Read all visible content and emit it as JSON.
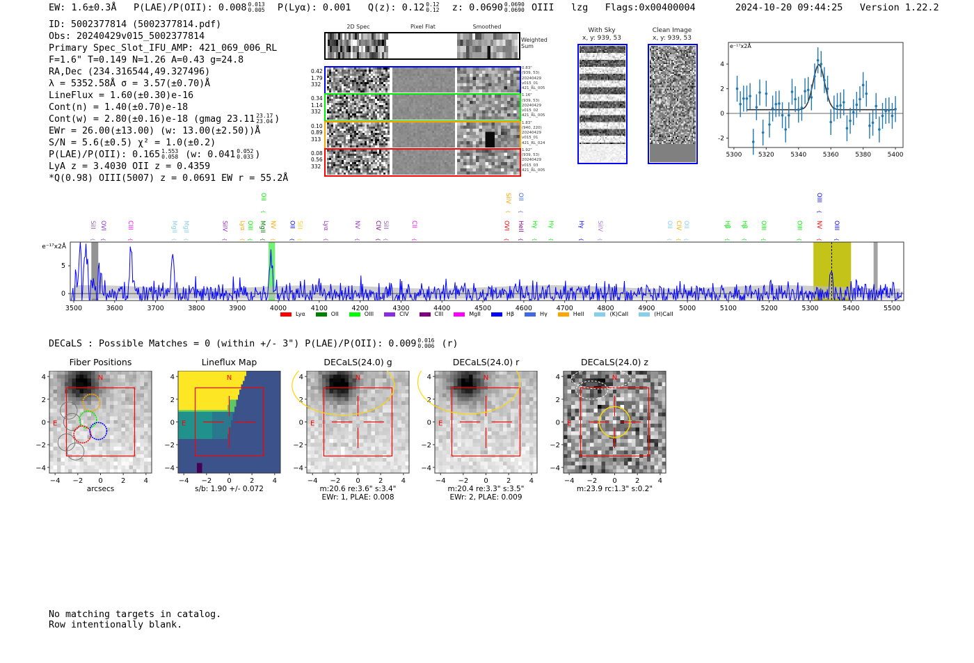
{
  "header": {
    "ew": "EW: 1.6±0.3Å",
    "plae_label": "P(LAE)/P(OII): 0.008",
    "plae_hi": "0.013",
    "plae_lo": "0.005",
    "plya": "P(Lyα): 0.001",
    "qz_label": "Q(z): 0.12",
    "qz_hi": "0.12",
    "qz_lo": "0.12",
    "z_label": "z: 0.0690",
    "z_hi": "0.0690",
    "z_lo": "0.0690",
    "line": "OIII",
    "tag": "lzg",
    "flags": "Flags:0x00400004",
    "datetime": "2024-10-20 09:44:25",
    "version": "Version 1.22.2"
  },
  "info": {
    "id": "ID: 5002377814 (5002377814.pdf)",
    "obs": "Obs: 20240429v015_5002377814",
    "primary": "Primary Spec_Slot_IFU_AMP: 421_069_006_RL",
    "params": "F=1.6\"  T=0.149  N=1.26  A=0.43  g=24.8",
    "radec": "RA,Dec (234.316544,49.327496)",
    "lambda": "λ = 5352.58Å  σ = 3.57(±0.70)Å",
    "lineflux": "LineFlux = 1.60(±0.30)e-16",
    "contn": "Cont(n) = 1.40(±0.70)e-18",
    "contw": "Cont(w) = 2.80(±0.16)e-18 (gmag 23.11",
    "contw_hi": "23.17",
    "contw_lo": "23.04",
    "contw_end": ")",
    "ewr": "EWr = 26.00(±13.00) (w: 13.00(±2.50))Å",
    "sn": "S/N = 5.6(±0.5)  χ² = 1.0(±0.2)",
    "plae": "P(LAE)/P(OII): 0.165",
    "plae_hi": "1.553",
    "plae_lo": "0.058",
    "plae_w": "(w: 0.041",
    "plae_w_hi": "0.052",
    "plae_w_lo": "0.033",
    "plae_end": ")",
    "lyaz": "LyA z = 3.4030   OII z = 0.4359",
    "q": "*Q(0.98) OIII(5007) z = 0.0691  EW r = 55.2Å"
  },
  "spec2d": {
    "col_headers": [
      "2D Spec",
      "Pixel Flat",
      "Smoothed"
    ],
    "weighted_label": "Weighted Sum",
    "rows": [
      {
        "color": "#0000ff",
        "left": [
          "0.42",
          "1.79",
          "332"
        ],
        "right": [
          "0.83\"",
          "(939, 53)",
          "20240429",
          "v015_01",
          "421_RL_005"
        ]
      },
      {
        "color": "#00ee00",
        "left": [
          "0.34",
          "1.14",
          "332"
        ],
        "right": [
          "1.16\"",
          "(939, 53)",
          "20240429",
          "v015_02",
          "421_RL_005"
        ]
      },
      {
        "color": "#ffa500",
        "left": [
          "0.10",
          "0.89",
          "313"
        ],
        "right": [
          "1.83\"",
          "(940, 220)",
          "20240429",
          "v015_01",
          "421_RL_024"
        ]
      },
      {
        "color": "#ff0000",
        "left": [
          "0.08",
          "0.56",
          "332"
        ],
        "right": [
          "1.92\"",
          "(939, 53)",
          "20240429",
          "v015_03",
          "421_RL_005"
        ]
      }
    ]
  },
  "sky": {
    "with_sky": "With Sky",
    "with_sky_xy": "x, y: 939, 53",
    "clean": "Clean Image",
    "clean_xy": "x, y: 939, 53"
  },
  "chart_data": [
    {
      "type": "scatter",
      "title": "",
      "ylabel": "e⁻¹⁷x2Å",
      "xlim": [
        5296.6,
        5404.7
      ],
      "ylim": [
        -2.76,
        5.75
      ],
      "xticks": [
        5300,
        5320,
        5340,
        5360,
        5380,
        5400
      ],
      "yticks": [
        -2,
        0,
        2,
        4
      ],
      "x": [
        5302,
        5304,
        5306,
        5308,
        5310,
        5312,
        5314,
        5316,
        5318,
        5320,
        5322,
        5324,
        5326,
        5328,
        5330,
        5332,
        5334,
        5336,
        5338,
        5340,
        5342,
        5344,
        5346,
        5348,
        5350,
        5352,
        5354,
        5356,
        5358,
        5360,
        5362,
        5364,
        5366,
        5368,
        5370,
        5372,
        5374,
        5376,
        5378,
        5380,
        5382,
        5384,
        5386,
        5388,
        5390,
        5392,
        5394,
        5396,
        5398,
        5400
      ],
      "y": [
        2.0,
        0.75,
        1.2,
        1.2,
        1.4,
        -2.3,
        0.5,
        1.7,
        -1.55,
        1.6,
        -0.9,
        0.4,
        0.75,
        0.8,
        -0.15,
        -1.3,
        -0.15,
        1.75,
        1.15,
        0.3,
        0.45,
        1.8,
        1.9,
        1.3,
        3.0,
        4.3,
        4.0,
        2.7,
        2.0,
        -0.7,
        0.4,
        0.6,
        0.65,
        0.9,
        -1.2,
        -0.6,
        0.1,
        0.7,
        1.15,
        2.3,
        1.6,
        -1.0,
        -0.75,
        0.6,
        -1.3,
        -0.2,
        0.2,
        0.25,
        -0.2,
        0.35
      ],
      "yerr": 1.05,
      "fit": {
        "continuum": 0.3,
        "amplitude": 3.65,
        "center": 5352.58,
        "sigma": 3.57
      }
    },
    {
      "type": "line",
      "ylabel": "e⁻¹⁷x2Å",
      "xlim": [
        3491.5,
        5528.7
      ],
      "ylim": [
        -1.25,
        9.25
      ],
      "xticks": [
        3500,
        3600,
        3700,
        3800,
        3900,
        4000,
        4100,
        4200,
        4300,
        4400,
        4500,
        4600,
        4700,
        4800,
        4900,
        5000,
        5100,
        5200,
        5300,
        5400,
        5500
      ],
      "yticks": [
        0,
        5
      ],
      "features": [
        {
          "wave": 3640,
          "flux": 8.2
        },
        {
          "wave": 3742,
          "flux": 7.0
        },
        {
          "wave": 3982,
          "flux": 6.5
        },
        {
          "wave": 5352,
          "flux": 3.2
        },
        {
          "wave": 3530,
          "flux": 9
        },
        {
          "wave": 3515,
          "flux": 8
        }
      ],
      "bands": [
        {
          "from": 3543,
          "to": 3560,
          "color": "#888888"
        },
        {
          "from": 3976,
          "to": 3992,
          "color": "#66ee66"
        },
        {
          "from": 5308,
          "to": 5400,
          "color": "#bcbd00"
        },
        {
          "from": 5455,
          "to": 5465,
          "color": "#999999"
        }
      ],
      "marker_line": 5352.6,
      "line_labels": [
        {
          "name": "SiII",
          "wave": 3537,
          "row": 1,
          "color": "#9467bd"
        },
        {
          "name": "OVI",
          "wave": 3563,
          "row": 1,
          "color": "#8a2be2"
        },
        {
          "name": "CIII",
          "wave": 3629,
          "row": 1,
          "color": "#ff00ff"
        },
        {
          "name": "MgII",
          "wave": 3736,
          "row": 1,
          "color": "#87ceeb"
        },
        {
          "name": "MgII",
          "wave": 3765,
          "row": 1,
          "color": "#87ceeb"
        },
        {
          "name": "SiIV",
          "wave": 3860,
          "row": 1,
          "color": "#9932cc"
        },
        {
          "name": "Lyα",
          "wave": 3903,
          "row": 1,
          "color": "#ffa500"
        },
        {
          "name": "OIII",
          "wave": 3920,
          "row": 1,
          "color": "#00ee00"
        },
        {
          "name": "MgII",
          "wave": 3952,
          "row": 1,
          "color": "#008000"
        },
        {
          "name": "NV",
          "wave": 3978,
          "row": 1,
          "color": "#ffa500"
        },
        {
          "name": "OII",
          "wave": 3954,
          "row": 0,
          "color": "#00ee00"
        },
        {
          "name": "OII",
          "wave": 4025,
          "row": 1,
          "color": "#0000ff"
        },
        {
          "name": "SiII",
          "wave": 4042,
          "row": 1,
          "color": "#ffcc33"
        },
        {
          "name": "Lyα",
          "wave": 4107,
          "row": 1,
          "color": "#9932cc"
        },
        {
          "name": "NV",
          "wave": 4184,
          "row": 1,
          "color": "#9932cc"
        },
        {
          "name": "CIV",
          "wave": 4235,
          "row": 1,
          "color": "#800080"
        },
        {
          "name": "SiII",
          "wave": 4252,
          "row": 1,
          "color": "#9467bd"
        },
        {
          "name": "CII",
          "wave": 4323,
          "row": 1,
          "color": "#ff00ff"
        },
        {
          "name": "SiIV",
          "wave": 4553,
          "row": 0,
          "color": "#ffa500"
        },
        {
          "name": "OII",
          "wave": 4583,
          "row": 0,
          "color": "#4169e1"
        },
        {
          "name": "OVI",
          "wave": 4548,
          "row": 1,
          "color": "#ff0000"
        },
        {
          "name": "HeII",
          "wave": 4583,
          "row": 1,
          "color": "#800080"
        },
        {
          "name": "Hγ",
          "wave": 4617,
          "row": 1,
          "color": "#00ee00"
        },
        {
          "name": "Hγ",
          "wave": 4657,
          "row": 1,
          "color": "#00ee00"
        },
        {
          "name": "Hγ",
          "wave": 4731,
          "row": 1,
          "color": "#0000ff"
        },
        {
          "name": "SiIV",
          "wave": 4777,
          "row": 1,
          "color": "#b07de0"
        },
        {
          "name": "OII",
          "wave": 4947,
          "row": 1,
          "color": "#87ceeb"
        },
        {
          "name": "CIV",
          "wave": 4969,
          "row": 1,
          "color": "#ffa500"
        },
        {
          "name": "OII",
          "wave": 4983,
          "row": 1,
          "color": "#87ceeb"
        },
        {
          "name": "Hβ",
          "wave": 5088,
          "row": 1,
          "color": "#00ee00"
        },
        {
          "name": "Hβ",
          "wave": 5130,
          "row": 1,
          "color": "#00ee00"
        },
        {
          "name": "OIII",
          "wave": 5177,
          "row": 1,
          "color": "#00ee00"
        },
        {
          "name": "OIII",
          "wave": 5264,
          "row": 1,
          "color": "#00ee00"
        },
        {
          "name": "NV",
          "wave": 5313,
          "row": 1,
          "color": "#ff0000"
        },
        {
          "name": "OIII",
          "wave": 5313,
          "row": 0,
          "color": "#0000ff"
        },
        {
          "name": "OIII",
          "wave": 5355,
          "row": 1,
          "color": "#0000ff"
        }
      ],
      "legend": [
        {
          "label": "Lyα",
          "color": "#ff0000"
        },
        {
          "label": "OII",
          "color": "#008000"
        },
        {
          "label": "OIII",
          "color": "#00ff00"
        },
        {
          "label": "CIV",
          "color": "#8a2be2"
        },
        {
          "label": "CIII",
          "color": "#800080"
        },
        {
          "label": "MgII",
          "color": "#ff00ff"
        },
        {
          "label": "Hβ",
          "color": "#0000ff"
        },
        {
          "label": "Hγ",
          "color": "#4169e1"
        },
        {
          "label": "HeII",
          "color": "#ffa500"
        },
        {
          "label": "(K)CaII",
          "color": "#87ceeb"
        },
        {
          "label": "(H)CaII",
          "color": "#87ceeb"
        }
      ]
    }
  ],
  "decals": {
    "line": "DECaLS : Possible Matches = 0 (within +/- 3\")  P(LAE)/P(OII): 0.009",
    "hi": "0.016",
    "lo": "0.006",
    "end": "(r)"
  },
  "cutouts": [
    {
      "title": "Fiber Positions",
      "cap1": "arcsecs",
      "cap2": "",
      "kind": "fiber"
    },
    {
      "title": "Lineflux Map",
      "cap1": "s/b: 1.90 +/- 0.072",
      "cap2": "",
      "kind": "lineflux"
    },
    {
      "title": "DECaLS(24.0) g",
      "cap1": "m:20.6  re:3.6\"  s:3.4\"",
      "cap2": "EWr: 1, PLAE: 0.008",
      "kind": "g"
    },
    {
      "title": "DECaLS(24.0) r",
      "cap1": "m:20.4  re:3.3\"  s:3.5\"",
      "cap2": "EWr: 2, PLAE: 0.009",
      "kind": "r"
    },
    {
      "title": "DECaLS(24.0) z",
      "cap1": "m:23.9  rc:1.3\"  s:0.2\"",
      "cap2": "",
      "kind": "z"
    }
  ],
  "cutout_axis": {
    "ticks": [
      "−4",
      "−2",
      "0",
      "2",
      "4"
    ],
    "n_label": "N",
    "e_label": "E"
  },
  "footer": {
    "line1": "No matching targets in catalog.",
    "line2": "Row intentionally blank."
  }
}
